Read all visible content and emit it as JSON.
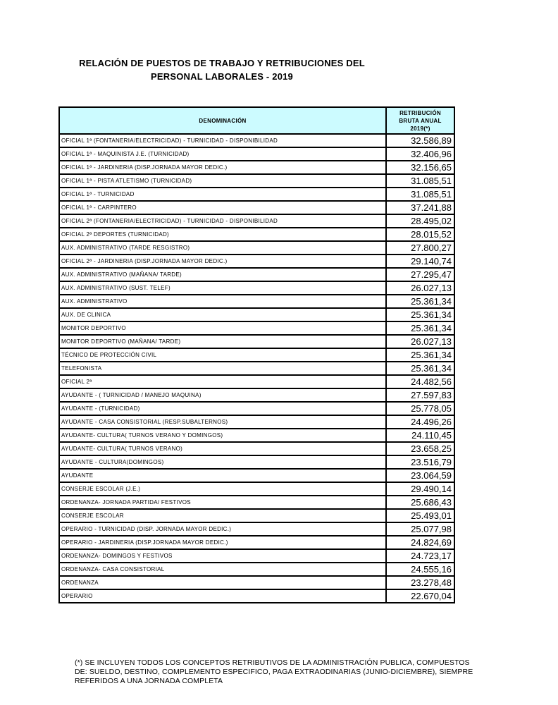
{
  "colors": {
    "header_bg": "#ccfbff",
    "border": "#000000",
    "text": "#000000"
  },
  "page": {
    "title_line1": "RELACIÓN DE PUESTOS DE TRABAJO Y RETRIBUCIONES DEL",
    "title_line2": "PERSONAL LABORALES - 2019"
  },
  "table": {
    "header": {
      "denominacion": "DENOMINACIÓN",
      "retribucion_lines": [
        "RETRIBUCIÓN",
        "BRUTA ANUAL",
        "2019(*)"
      ]
    },
    "rows": [
      {
        "label": "OFICIAL 1ª (FONTANERIA/ELECTRICIDAD) - TURNICIDAD - DISPONIBILIDAD",
        "value": "32.586,89"
      },
      {
        "label": "OFICIAL 1ª - MAQUINISTA J.E. (TURNICIDAD)",
        "value": "32.406,96"
      },
      {
        "label": "OFICIAL 1ª - JARDINERIA (DISP.JORNADA MAYOR DEDIC.)",
        "value": "32.156,65"
      },
      {
        "label": "OFICIAL 1ª - PISTA ATLETISMO (TURNICIDAD)",
        "value": "31.085,51"
      },
      {
        "label": "OFICIAL 1ª - TURNICIDAD",
        "value": "31.085,51"
      },
      {
        "label": "OFICIAL 1ª - CARPINTERO",
        "value": "37.241,88"
      },
      {
        "label": "OFICIAL 2ª (FONTANERIA/ELECTRICIDAD) - TURNICIDAD - DISPONIBILIDAD",
        "value": "28.495,02"
      },
      {
        "label": "OFICIAL 2ª DEPORTES (TURNICIDAD)",
        "value": "28.015,52"
      },
      {
        "label": "AUX. ADMINISTRATIVO (TARDE RESGISTRO)",
        "value": "27.800,27"
      },
      {
        "label": "OFICIAL 2ª - JARDINERIA (DISP.JORNADA MAYOR DEDIC.)",
        "value": "29.140,74"
      },
      {
        "label": "AUX. ADMINISTRATIVO (MAÑANA/ TARDE)",
        "value": "27.295,47"
      },
      {
        "label": "AUX. ADMINISTRATIVO (SUST. TELEF)",
        "value": "26.027,13"
      },
      {
        "label": "AUX. ADMINISTRATIVO",
        "value": "25.361,34"
      },
      {
        "label": "AUX. DE CLINICA",
        "value": "25.361,34"
      },
      {
        "label": "MONITOR DEPORTIVO",
        "value": "25.361,34"
      },
      {
        "label": "MONITOR DEPORTIVO (MAÑANA/ TARDE)",
        "value": "26.027,13"
      },
      {
        "label": "TÉCNICO DE PROTECCIÓN CIVIL",
        "value": "25.361,34"
      },
      {
        "label": "TELEFONISTA",
        "value": "25.361,34"
      },
      {
        "label": "OFICIAL 2ª",
        "value": "24.482,56"
      },
      {
        "label": "AYUDANTE - ( TURNICIDAD / MANEJO MAQUINA)",
        "value": "27.597,83"
      },
      {
        "label": "AYUDANTE - (TURNICIDAD)",
        "value": "25.778,05"
      },
      {
        "label": "AYUDANTE -  CASA CONSISTORIAL (RESP.SUBALTERNOS)",
        "value": "24.496,26"
      },
      {
        "label": "AYUDANTE- CULTURA( TURNOS VERANO Y DOMINGOS)",
        "value": "24.110,45"
      },
      {
        "label": "AYUDANTE- CULTURA( TURNOS VERANO)",
        "value": "23.658,25"
      },
      {
        "label": "AYUDANTE - CULTURA(DOMINGOS)",
        "value": "23.516,79"
      },
      {
        "label": "AYUDANTE",
        "value": "23.064,59"
      },
      {
        "label": "CONSERJE ESCOLAR (J.E.)",
        "value": "29.490,14"
      },
      {
        "label": "ORDENANZA- JORNADA PARTIDA/ FESTIVOS",
        "value": "25.686,43"
      },
      {
        "label": "CONSERJE ESCOLAR",
        "value": "25.493,01"
      },
      {
        "label": "OPERARIO - TURNICIDAD (DISP. JORNADA MAYOR DEDIC.)",
        "value": "25.077,98"
      },
      {
        "label": "OPERARIO - JARDINERIA (DISP.JORNADA MAYOR DEDIC.)",
        "value": "24.824,69"
      },
      {
        "label": "ORDENANZA- DOMINGOS Y FESTIVOS",
        "value": "24.723,17"
      },
      {
        "label": "ORDENANZA- CASA CONSISTORIAL",
        "value": "24.555,16"
      },
      {
        "label": "ORDENANZA",
        "value": "23.278,48"
      },
      {
        "label": "OPERARIO",
        "value": "22.670,04"
      }
    ]
  },
  "footnote": {
    "lines": [
      "(*) SE INCLUYEN TODOS LOS CONCEPTOS RETRIBUTIVOS DE LA ADMINISTRACIÓN PUBLICA, COMPUESTOS",
      "DE: SUELDO, DESTINO, COMPLEMENTO ESPECIFICO, PAGA EXTRAODINARIAS (JUNIO-DICIEMBRE), SIEMPRE",
      "REFERIDOS A UNA JORNADA COMPLETA"
    ]
  }
}
